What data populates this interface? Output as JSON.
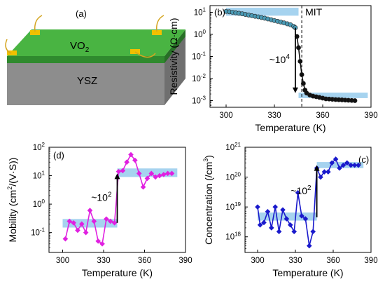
{
  "device": {
    "panel_label": "(a)",
    "film_label_main": "VO",
    "film_label_sub": "2",
    "substrate_label": "YSZ",
    "colors": {
      "film": "#3fa33a",
      "film_top": "#4fb845",
      "substrate": "#8a8a8a",
      "contact": "#f2c200",
      "wire": "#d9a820"
    }
  },
  "chart_data": [
    {
      "id": "b",
      "type": "line",
      "panel_label": "(b)",
      "xlabel": "Temperature (K)",
      "ylabel_html": "Resistivity (Ω·cm)",
      "x_ticks": [
        300,
        330,
        360,
        390
      ],
      "xlim": [
        290,
        390
      ],
      "ylim": [
        0.0005,
        20
      ],
      "yscale": "log",
      "y_ticks": [
        {
          "value": 0.001,
          "base": "10",
          "exp": "-3"
        },
        {
          "value": 0.01,
          "base": "10",
          "exp": "-2"
        },
        {
          "value": 0.1,
          "base": "10",
          "exp": "-1"
        },
        {
          "value": 1,
          "base": "10",
          "exp": "0"
        },
        {
          "value": 10,
          "base": "10",
          "exp": "1"
        }
      ],
      "series": [
        {
          "color": "#4a9ab5",
          "x": [
            300,
            302,
            304,
            306,
            308,
            310,
            312,
            314,
            316,
            318,
            320,
            322,
            324,
            326,
            328,
            330,
            332,
            334,
            336,
            338,
            340,
            342,
            343
          ],
          "y": [
            11,
            10.5,
            10,
            9.5,
            9,
            8.5,
            8,
            7.5,
            7,
            6.6,
            6.2,
            5.8,
            5.4,
            5.0,
            4.6,
            4.2,
            3.9,
            3.6,
            3.3,
            3.0,
            2.7,
            2.3,
            2.0
          ]
        },
        {
          "color": "#111111",
          "x": [
            344,
            345,
            346,
            347,
            348,
            349,
            350,
            352,
            354,
            356,
            358,
            360,
            362,
            364,
            366,
            368,
            370,
            372,
            374,
            376,
            378,
            380
          ],
          "y": [
            0.8,
            0.25,
            0.06,
            0.015,
            0.006,
            0.003,
            0.0022,
            0.0018,
            0.0016,
            0.0015,
            0.0014,
            0.0013,
            0.0012,
            0.00118,
            0.00115,
            0.00112,
            0.0011,
            0.00108,
            0.00106,
            0.00104,
            0.00102,
            0.001
          ]
        }
      ],
      "bands": [
        {
          "x0": 300,
          "x1": 345,
          "y0": 7,
          "y1": 16
        },
        {
          "x0": 345,
          "x1": 388,
          "y0": 0.0013,
          "y1": 0.0023
        }
      ],
      "vline": {
        "x": 347,
        "label": "MIT"
      },
      "arrow": {
        "x": 343,
        "y_from": 2,
        "y_to": 0.0022,
        "label_base": "~10",
        "label_exp": "4"
      }
    },
    {
      "id": "d",
      "type": "line",
      "panel_label": "(d)",
      "xlabel": "Temperature (K)",
      "ylabel_main": "Mobility (cm",
      "ylabel_sup": "2",
      "ylabel_tail": "/(V·S))",
      "x_ticks": [
        300,
        330,
        360,
        390
      ],
      "xlim": [
        290,
        390
      ],
      "ylim": [
        0.02,
        100
      ],
      "yscale": "log",
      "y_ticks": [
        {
          "value": 0.1,
          "base": "10",
          "exp": "-1"
        },
        {
          "value": 1,
          "base": "10",
          "exp": "0"
        },
        {
          "value": 10,
          "base": "10",
          "exp": "1"
        },
        {
          "value": 100,
          "base": "10",
          "exp": "2"
        }
      ],
      "series": [
        {
          "color": "#e020e0",
          "x": [
            302,
            305,
            308,
            311,
            314,
            317,
            320,
            323,
            326,
            329,
            332,
            335,
            338,
            341,
            344,
            347,
            350,
            353,
            356,
            359,
            362,
            365,
            368,
            371,
            374,
            377,
            380
          ],
          "y": [
            0.06,
            0.25,
            0.22,
            0.12,
            0.2,
            0.1,
            0.6,
            0.25,
            0.05,
            0.04,
            0.3,
            0.25,
            0.22,
            14,
            15,
            30,
            55,
            35,
            12,
            4,
            8,
            12,
            9,
            10,
            11,
            12,
            12
          ]
        }
      ],
      "bands": [
        {
          "x0": 300,
          "x1": 340,
          "y0": 0.15,
          "y1": 0.3
        },
        {
          "x0": 340,
          "x1": 384,
          "y0": 9,
          "y1": 18
        }
      ],
      "arrow": {
        "x": 340,
        "y_from": 0.22,
        "y_to": 12,
        "label_base": "~10",
        "label_exp": "2"
      }
    },
    {
      "id": "c",
      "type": "line",
      "panel_label": "(c)",
      "xlabel": "Temperature (K)",
      "ylabel_main": "Concentration (/cm",
      "ylabel_sup": "3",
      "ylabel_tail": ")",
      "x_ticks": [
        300,
        330,
        360,
        390
      ],
      "xlim": [
        290,
        390
      ],
      "ylim": [
        3e+17,
        1e+21
      ],
      "yscale": "log",
      "y_ticks": [
        {
          "value": 1e+18,
          "base": "10",
          "exp": "18"
        },
        {
          "value": 1e+19,
          "base": "10",
          "exp": "19"
        },
        {
          "value": 1e+20,
          "base": "10",
          "exp": "20"
        },
        {
          "value": 1e+21,
          "base": "10",
          "exp": "21"
        }
      ],
      "series": [
        {
          "color": "#1a1acc",
          "x": [
            300,
            302,
            305,
            308,
            311,
            314,
            317,
            320,
            323,
            326,
            329,
            332,
            335,
            338,
            341,
            344,
            347,
            350,
            353,
            356,
            359,
            362,
            365,
            368,
            371,
            374,
            377,
            380
          ],
          "y": [
            1e+19,
            2.5e+18,
            3e+18,
            7e+18,
            2e+18,
            1e+19,
            1.5e+18,
            8e+18,
            4e+18,
            2.5e+18,
            1.5e+18,
            3e+19,
            5e+18,
            4e+18,
            5e+17,
            1.5e+18,
            2e+20,
            1e+20,
            1.5e+20,
            1.5e+20,
            3e+20,
            4e+20,
            2e+20,
            2.5e+20,
            3e+20,
            2.5e+20,
            2.5e+20,
            2.5e+20
          ]
        }
      ],
      "bands": [
        {
          "x0": 300,
          "x1": 347,
          "y0": 3.5e+18,
          "y1": 6.5e+18
        },
        {
          "x0": 347,
          "x1": 384,
          "y0": 2e+20,
          "y1": 3.2e+20
        }
      ],
      "arrow": {
        "x": 347,
        "y_from": 4.5e+18,
        "y_to": 2.5e+20,
        "label_base": "~10",
        "label_exp": "2"
      }
    }
  ]
}
